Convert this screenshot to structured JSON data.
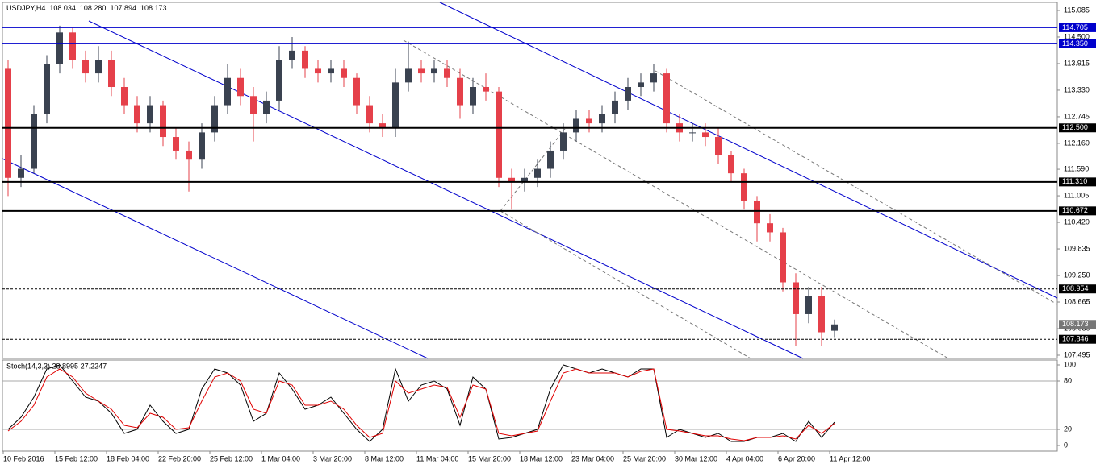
{
  "chart_data": {
    "type": "candlestick",
    "title": "USDJPY,H4",
    "header": {
      "values": [
        108.034,
        108.28,
        107.894,
        108.173
      ],
      "value_labels": [
        "108.034",
        "108.280",
        "107.894",
        "108.173"
      ]
    },
    "categories": [
      "10 Feb 2016",
      null,
      null,
      null,
      "15 Feb 12:00",
      null,
      null,
      null,
      "18 Feb 04:00",
      null,
      null,
      null,
      "22 Feb 20:00",
      null,
      null,
      null,
      "25 Feb 12:00",
      null,
      null,
      null,
      "1 Mar 04:00",
      null,
      null,
      null,
      "3 Mar 20:00",
      null,
      null,
      null,
      "8 Mar 12:00",
      null,
      null,
      null,
      "11 Mar 04:00",
      null,
      null,
      null,
      "15 Mar 20:00",
      null,
      null,
      null,
      "18 Mar 12:00",
      null,
      null,
      null,
      "23 Mar 04:00",
      null,
      null,
      null,
      "25 Mar 20:00",
      null,
      null,
      null,
      "30 Mar 12:00",
      null,
      null,
      null,
      "4 Apr 04:00",
      null,
      null,
      null,
      "6 Apr 20:00",
      null,
      null,
      null,
      "11 Apr 12:00"
    ],
    "open": [
      113.8,
      111.4,
      111.6,
      112.8,
      113.9,
      114.6,
      114.0,
      113.7,
      114.0,
      113.4,
      113.0,
      112.6,
      113.0,
      112.3,
      112.0,
      111.8,
      112.4,
      113.0,
      113.6,
      113.2,
      112.8,
      113.1,
      114.0,
      114.2,
      113.8,
      113.7,
      113.8,
      113.6,
      113.0,
      112.6,
      112.5,
      113.5,
      113.8,
      113.7,
      113.8,
      113.6,
      113.0,
      113.4,
      113.3,
      111.4,
      111.3,
      111.4,
      111.6,
      112.0,
      112.4,
      112.7,
      112.6,
      112.8,
      113.1,
      113.4,
      113.5,
      113.7,
      112.6,
      112.4,
      112.4,
      112.3,
      111.9,
      111.5,
      110.9,
      110.4,
      110.2,
      109.1,
      108.4,
      108.8,
      108.034
    ],
    "high": [
      114.0,
      111.9,
      113.0,
      114.1,
      114.75,
      114.7,
      114.2,
      114.3,
      114.2,
      113.6,
      113.2,
      113.2,
      113.1,
      112.5,
      112.2,
      112.6,
      113.2,
      113.9,
      113.8,
      113.4,
      113.3,
      114.3,
      114.5,
      114.3,
      114.0,
      114.0,
      114.0,
      113.7,
      113.2,
      112.8,
      113.8,
      114.4,
      114.0,
      114.0,
      114.0,
      113.8,
      113.6,
      113.7,
      113.4,
      111.6,
      111.6,
      111.8,
      112.2,
      112.6,
      112.9,
      112.9,
      113.0,
      113.3,
      113.6,
      113.7,
      113.9,
      113.8,
      112.8,
      112.6,
      112.6,
      112.5,
      112.0,
      111.6,
      111.0,
      110.6,
      110.3,
      109.3,
      109.0,
      109.0,
      108.28
    ],
    "low": [
      111.0,
      111.2,
      111.5,
      112.6,
      113.7,
      113.8,
      113.5,
      113.5,
      113.2,
      112.8,
      112.4,
      112.4,
      112.1,
      111.8,
      111.1,
      111.6,
      112.2,
      112.8,
      113.0,
      112.2,
      112.6,
      112.9,
      113.8,
      113.6,
      113.5,
      113.5,
      113.4,
      112.8,
      112.4,
      112.3,
      112.3,
      113.3,
      113.5,
      113.5,
      113.4,
      112.7,
      112.8,
      113.1,
      111.2,
      110.7,
      111.1,
      111.2,
      111.4,
      111.8,
      112.2,
      112.4,
      112.4,
      112.6,
      112.9,
      113.2,
      113.3,
      112.4,
      112.2,
      112.2,
      112.1,
      111.7,
      111.3,
      110.7,
      110.0,
      110.0,
      108.9,
      107.7,
      108.2,
      107.7,
      107.894
    ],
    "close": [
      111.4,
      111.6,
      112.8,
      113.9,
      114.6,
      114.0,
      113.7,
      114.0,
      113.4,
      113.0,
      112.6,
      113.0,
      112.3,
      112.0,
      111.8,
      112.4,
      113.0,
      113.6,
      113.2,
      112.8,
      113.1,
      114.0,
      114.2,
      113.8,
      113.7,
      113.8,
      113.6,
      113.0,
      112.6,
      112.5,
      113.5,
      113.8,
      113.7,
      113.8,
      113.6,
      113.0,
      113.4,
      113.3,
      111.4,
      111.3,
      111.4,
      111.6,
      112.0,
      112.4,
      112.7,
      112.6,
      112.8,
      113.1,
      113.4,
      113.5,
      113.7,
      112.6,
      112.4,
      112.4,
      112.3,
      111.9,
      111.5,
      110.9,
      110.4,
      110.2,
      109.1,
      108.4,
      108.8,
      108.0,
      108.173
    ],
    "up_color": "#3a4250",
    "down_color": "#e5404a",
    "ylim": [
      107.424,
      115.262
    ],
    "yticks": [
      115.085,
      {
        "value": 114.5,
        "label": "114.500"
      },
      113.915,
      {
        "value": 113.33,
        "label": "113.330"
      },
      112.745,
      {
        "value": 112.16,
        "label": "112.160"
      },
      {
        "value": 111.59,
        "label": "111.590"
      },
      111.005,
      {
        "value": 110.42,
        "label": "110.420"
      },
      109.835,
      {
        "value": 109.25,
        "label": "109.250"
      },
      108.665,
      {
        "value": 108.08,
        "label": "108.080"
      },
      107.495
    ],
    "levels": [
      {
        "value": 114.705,
        "label": "114.705",
        "color": "#0000cc",
        "style": "solid"
      },
      {
        "value": 114.35,
        "label": "114.350",
        "color": "#0000cc",
        "style": "solid"
      },
      {
        "value": 112.5,
        "label": "112.500",
        "color": "#000000",
        "style": "thick"
      },
      {
        "value": 111.31,
        "label": "111.310",
        "color": "#000000",
        "style": "thick"
      },
      {
        "value": 110.672,
        "label": "110.672",
        "color": "#000000",
        "style": "thick"
      },
      {
        "value": 108.954,
        "label": "108.954",
        "color": "#000000",
        "style": "dashed"
      },
      {
        "value": 107.846,
        "label": "107.846",
        "color": "#000000",
        "style": "dashed"
      }
    ],
    "current_price": {
      "value": 108.173,
      "label": "108.173"
    },
    "indicator": {
      "title": "Stoch(14,3,3) 28.8995 27.2247",
      "ylim": [
        -7,
        106
      ],
      "yticks": [
        100,
        80,
        20,
        0
      ],
      "levels": [
        80,
        20
      ],
      "series": [
        {
          "color": "#000000",
          "values": [
            20,
            35,
            60,
            95,
            100,
            80,
            60,
            55,
            40,
            15,
            20,
            50,
            30,
            15,
            20,
            70,
            95,
            90,
            75,
            30,
            40,
            90,
            70,
            45,
            50,
            60,
            40,
            20,
            5,
            20,
            95,
            55,
            75,
            80,
            70,
            25,
            85,
            70,
            8,
            10,
            15,
            20,
            70,
            100,
            95,
            90,
            95,
            90,
            85,
            95,
            95,
            10,
            20,
            15,
            10,
            15,
            5,
            5,
            10,
            10,
            15,
            5,
            30,
            10,
            28.8995
          ]
        },
        {
          "color": "#e00000",
          "values": [
            18,
            30,
            50,
            85,
            95,
            85,
            65,
            55,
            45,
            25,
            22,
            40,
            35,
            20,
            22,
            55,
            85,
            90,
            80,
            45,
            40,
            80,
            75,
            50,
            50,
            55,
            45,
            25,
            10,
            15,
            80,
            65,
            70,
            75,
            72,
            35,
            75,
            70,
            15,
            12,
            15,
            18,
            55,
            90,
            95,
            90,
            90,
            90,
            85,
            92,
            95,
            20,
            18,
            15,
            12,
            12,
            8,
            6,
            10,
            10,
            12,
            8,
            25,
            15,
            27.2247
          ]
        }
      ]
    }
  }
}
